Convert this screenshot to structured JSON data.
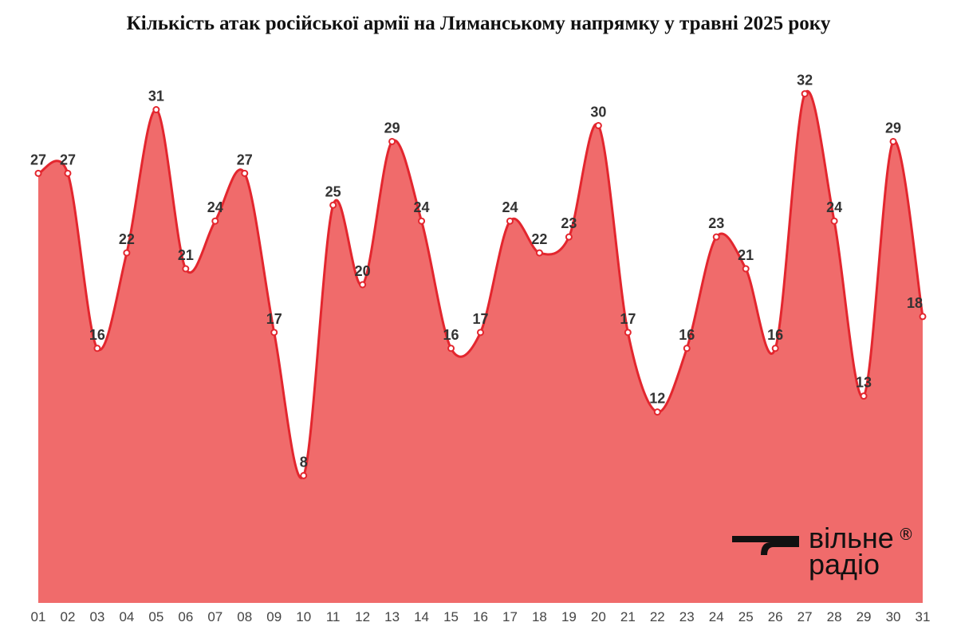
{
  "chart_data": {
    "type": "area",
    "title": "Кількість атак російської армії на Лиманському напрямку у травні 2025 року",
    "categories": [
      "01",
      "02",
      "03",
      "04",
      "05",
      "06",
      "07",
      "08",
      "09",
      "10",
      "11",
      "12",
      "13",
      "14",
      "15",
      "16",
      "17",
      "18",
      "19",
      "20",
      "21",
      "22",
      "23",
      "24",
      "25",
      "26",
      "27",
      "28",
      "29",
      "30",
      "31"
    ],
    "values": [
      27,
      27,
      16,
      22,
      31,
      21,
      24,
      27,
      17,
      8,
      25,
      20,
      29,
      24,
      16,
      17,
      24,
      22,
      23,
      30,
      17,
      12,
      16,
      23,
      21,
      16,
      32,
      24,
      13,
      29,
      18
    ],
    "xlabel": "",
    "ylabel": "",
    "ylim": [
      0,
      34
    ],
    "grid": false,
    "legend": "none",
    "colors": {
      "fill": "#f06b6b",
      "line": "#e3262e",
      "marker_fill": "#ffffff"
    }
  },
  "brand": {
    "line1": "вільне",
    "line2": "радіо",
    "registered": "®"
  }
}
